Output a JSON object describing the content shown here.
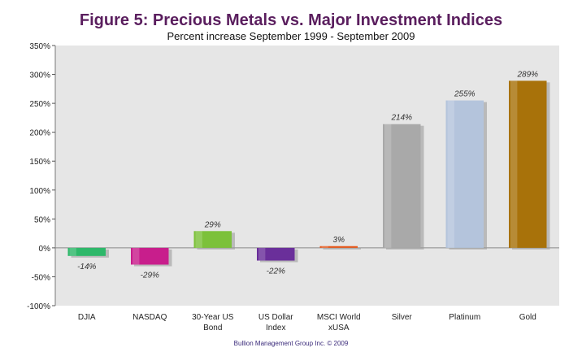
{
  "chart_data": {
    "type": "bar",
    "title": "Figure 5: Precious Metals vs. Major Investment Indices",
    "subtitle": "Percent increase September 1999 - September 2009",
    "footer": "Bullion Management Group Inc. © 2009",
    "categories": [
      [
        "DJIA"
      ],
      [
        "NASDAQ"
      ],
      [
        "30-Year US",
        "Bond"
      ],
      [
        "US Dollar",
        "Index"
      ],
      [
        "MSCI World",
        "xUSA"
      ],
      [
        "Silver"
      ],
      [
        "Platinum"
      ],
      [
        "Gold"
      ]
    ],
    "values": [
      -14,
      -29,
      29,
      -22,
      3,
      214,
      255,
      289
    ],
    "value_labels": [
      "-14%",
      "-29%",
      "29%",
      "-22%",
      "3%",
      "214%",
      "255%",
      "289%"
    ],
    "colors": [
      "#2eb86a",
      "#c81e8c",
      "#7cc13a",
      "#6a2f9a",
      "#e65a1e",
      "#a9a9a9",
      "#b4c4dc",
      "#a8720a"
    ],
    "ylim": [
      -100,
      350
    ],
    "yticks": [
      -100,
      -50,
      0,
      50,
      100,
      150,
      200,
      250,
      300,
      350
    ],
    "ytick_labels": [
      "-100%",
      "-50%",
      "0%",
      "50%",
      "100%",
      "150%",
      "200%",
      "250%",
      "300%",
      "350%"
    ],
    "grid": false,
    "legend": "none"
  }
}
